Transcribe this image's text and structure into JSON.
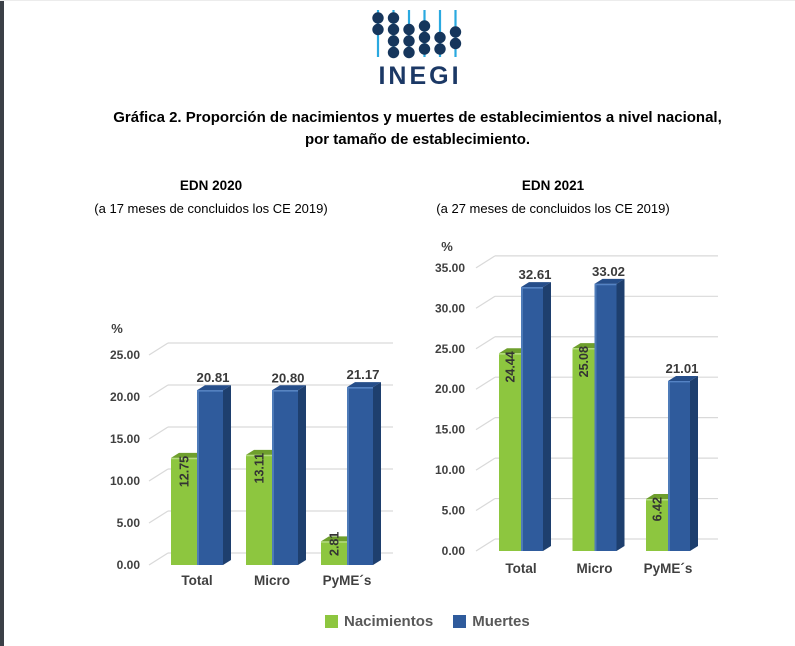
{
  "page": {
    "background": "#ffffff",
    "left_edge_color": "#3B4047"
  },
  "logo": {
    "text": "INEGI",
    "text_color": "#1B3865",
    "rod_color": "#2AA9E0",
    "bead_color": "#16365C"
  },
  "title": {
    "line1": "Gráfica 2. Proporción de nacimientos y muertes de establecimientos a nivel nacional,",
    "line2": "por tamaño de establecimiento."
  },
  "legend": {
    "items": [
      {
        "label": "Nacimientos",
        "color": "#8DC63F"
      },
      {
        "label": "Muertes",
        "color": "#2F5B9C"
      }
    ]
  },
  "chart_data": [
    {
      "type": "bar",
      "variant": "3d-clustered-column",
      "title": "EDN 2020",
      "subtitle": "(a 17 meses de concluidos los CE 2019)",
      "ylabel": "%",
      "ylim": [
        0,
        25
      ],
      "ystep": 5,
      "grid": true,
      "tick_format": "two-decimals",
      "categories": [
        "Total",
        "Micro",
        "PyME´s"
      ],
      "series": [
        {
          "name": "Nacimientos",
          "color": "#8DC63F",
          "color_top": "#6E9F2D",
          "color_side": "#5D8A26",
          "color_bevel": "#B4DC7F",
          "values": [
            12.75,
            13.11,
            2.81
          ]
        },
        {
          "name": "Muertes",
          "color": "#2F5B9C",
          "color_top": "#264E8A",
          "color_side": "#1E3F6E",
          "color_edge": "#4E7BB8",
          "color_bevel": "#5583C4",
          "values": [
            20.81,
            20.8,
            21.17
          ]
        }
      ]
    },
    {
      "type": "bar",
      "variant": "3d-clustered-column",
      "title": "EDN 2021",
      "subtitle": "(a 27 meses de concluidos los CE 2019)",
      "ylabel": "%",
      "ylim": [
        0,
        35
      ],
      "ystep": 5,
      "grid": true,
      "tick_format": "two-decimals",
      "categories": [
        "Total",
        "Micro",
        "PyME´s"
      ],
      "series": [
        {
          "name": "Nacimientos",
          "color": "#8DC63F",
          "color_top": "#6E9F2D",
          "color_side": "#5D8A26",
          "color_bevel": "#B4DC7F",
          "values": [
            24.44,
            25.08,
            6.42
          ]
        },
        {
          "name": "Muertes",
          "color": "#2F5B9C",
          "color_top": "#264E8A",
          "color_side": "#1E3F6E",
          "color_edge": "#4E7BB8",
          "color_bevel": "#5583C4",
          "values": [
            32.61,
            33.02,
            21.01
          ]
        }
      ]
    }
  ]
}
